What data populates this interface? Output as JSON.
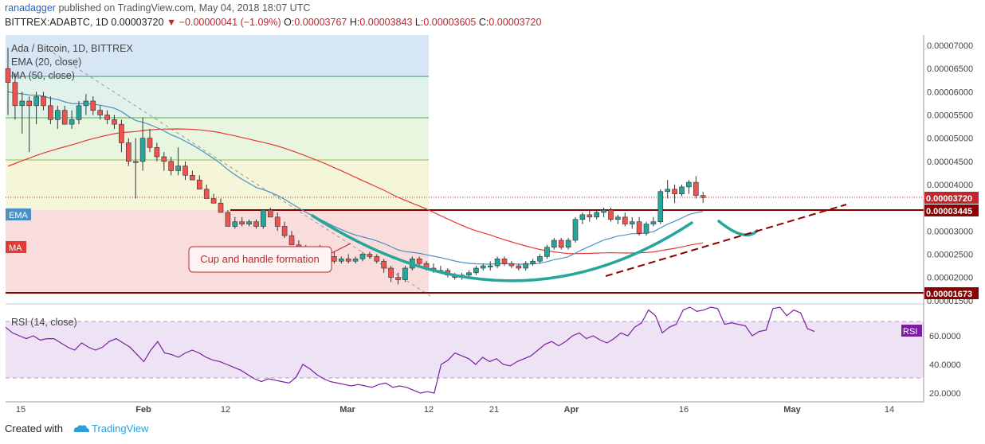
{
  "header": {
    "author": "ranadagger",
    "published": "published on TradingView.com, May 04, 2018 18:07 UTC",
    "symbol": "BITTREX:ADABTC, 1D",
    "last": "0.00003720",
    "change": "▼ −0.00000041 (−1.09%)",
    "o_label": "O:",
    "o": "0.00003767",
    "h_label": "H:",
    "h": "0.00003843",
    "l_label": "L:",
    "l": "0.00003605",
    "c_label": "C:",
    "c": "0.00003720"
  },
  "legend": {
    "title": "Ada / Bitcoin, 1D, BITTREX",
    "ema": "EMA (20, close)",
    "ma": "MA (50, close)",
    "rsi": "RSI (14, close)"
  },
  "tags": {
    "ema": "EMA",
    "ma": "MA",
    "rsi": "RSI"
  },
  "annotation": "Cup and handle formation",
  "footer": {
    "created": "Created with",
    "brand": "TradingView"
  },
  "colors": {
    "up": "#26a69a",
    "down": "#ef5350",
    "ema": "#4a90c4",
    "ma": "#e53935",
    "rsi": "#7b1fa2",
    "level": "#8b0000",
    "cup": "#26a69a"
  },
  "chart_data": [
    {
      "type": "candlestick",
      "title": "Ada / Bitcoin, 1D, BITTREX",
      "x_range": [
        "2018-01-14",
        "2018-05-19"
      ],
      "ylim": [
        1.47e-05,
        7.07e-05
      ],
      "x_tick_labels": [
        "15",
        "Feb",
        "12",
        "Mar",
        "12",
        "21",
        "Apr",
        "16",
        "May",
        "14"
      ],
      "y_tick_labels": [
        "0.00001500",
        "0.00002000",
        "0.00002500",
        "0.00003000",
        "0.00003500",
        "0.00004000",
        "0.00004500",
        "0.00005000",
        "0.00005500",
        "0.00006000",
        "0.00006500",
        "0.00007000"
      ],
      "price_labels": [
        "0.00003720",
        "0.00003445",
        "0.00001673"
      ],
      "horizontal_levels": [
        3.445e-05,
        1.673e-05
      ],
      "candles_ohlc_x1e8": [
        [
          6500,
          6950,
          5500,
          6200
        ],
        [
          6200,
          6400,
          5400,
          5700
        ],
        [
          5700,
          6000,
          5100,
          5800
        ],
        [
          5800,
          5900,
          4700,
          5700
        ],
        [
          5700,
          6000,
          5300,
          5900
        ],
        [
          5900,
          6000,
          5600,
          5700
        ],
        [
          5700,
          5900,
          5300,
          5400
        ],
        [
          5400,
          5700,
          5200,
          5600
        ],
        [
          5600,
          5700,
          5300,
          5300
        ],
        [
          5300,
          5600,
          5200,
          5400
        ],
        [
          5400,
          5800,
          5300,
          5700
        ],
        [
          5700,
          5950,
          5500,
          5800
        ],
        [
          5800,
          5900,
          5500,
          5600
        ],
        [
          5600,
          5700,
          5400,
          5500
        ],
        [
          5500,
          5600,
          5300,
          5400
        ],
        [
          5400,
          5500,
          5200,
          5300
        ],
        [
          5300,
          5400,
          4700,
          4900
        ],
        [
          4900,
          5000,
          4400,
          4500
        ],
        [
          4500,
          5000,
          3700,
          4500
        ],
        [
          4500,
          5450,
          4300,
          5000
        ],
        [
          5000,
          5200,
          4700,
          4800
        ],
        [
          4800,
          4900,
          4500,
          4600
        ],
        [
          4600,
          4700,
          4300,
          4500
        ],
        [
          4500,
          4600,
          4200,
          4300
        ],
        [
          4300,
          4800,
          4200,
          4400
        ],
        [
          4400,
          4500,
          4100,
          4200
        ],
        [
          4200,
          4300,
          4100,
          4100
        ],
        [
          4100,
          4200,
          3900,
          3900
        ],
        [
          3900,
          4000,
          3700,
          3700
        ],
        [
          3700,
          3800,
          3600,
          3600
        ],
        [
          3600,
          3700,
          3400,
          3400
        ],
        [
          3400,
          3450,
          3100,
          3100
        ],
        [
          3100,
          3300,
          3050,
          3200
        ],
        [
          3200,
          3300,
          3100,
          3150
        ],
        [
          3150,
          3250,
          3100,
          3200
        ],
        [
          3200,
          3250,
          3050,
          3100
        ],
        [
          3100,
          3450,
          3050,
          3450
        ],
        [
          3450,
          3500,
          3300,
          3300
        ],
        [
          3300,
          3400,
          3000,
          3100
        ],
        [
          3100,
          3200,
          2850,
          2900
        ],
        [
          2900,
          3000,
          2700,
          2700
        ],
        [
          2700,
          2800,
          2550,
          2600
        ],
        [
          2600,
          2700,
          2500,
          2550
        ],
        [
          2550,
          2650,
          2500,
          2600
        ],
        [
          2600,
          2700,
          2500,
          2550
        ],
        [
          2550,
          2600,
          2400,
          2450
        ],
        [
          2450,
          2550,
          2300,
          2350
        ],
        [
          2350,
          2450,
          2300,
          2400
        ],
        [
          2400,
          2500,
          2300,
          2350
        ],
        [
          2350,
          2450,
          2300,
          2400
        ],
        [
          2400,
          2550,
          2350,
          2500
        ],
        [
          2500,
          2550,
          2400,
          2450
        ],
        [
          2450,
          2500,
          2300,
          2350
        ],
        [
          2350,
          2400,
          2100,
          2200
        ],
        [
          2200,
          2250,
          1900,
          2000
        ],
        [
          2000,
          2100,
          1850,
          1950
        ],
        [
          1950,
          2250,
          1900,
          2200
        ],
        [
          2200,
          2450,
          2150,
          2400
        ],
        [
          2400,
          2450,
          2250,
          2300
        ],
        [
          2300,
          2350,
          2150,
          2200
        ],
        [
          2200,
          2300,
          2100,
          2150
        ],
        [
          2150,
          2250,
          2100,
          2150
        ],
        [
          2150,
          2200,
          2000,
          2050
        ],
        [
          2050,
          2100,
          1950,
          2000
        ],
        [
          2000,
          2100,
          1950,
          2050
        ],
        [
          2050,
          2150,
          2000,
          2100
        ],
        [
          2100,
          2250,
          2050,
          2200
        ],
        [
          2200,
          2300,
          2150,
          2250
        ],
        [
          2250,
          2350,
          2150,
          2250
        ],
        [
          2250,
          2450,
          2200,
          2400
        ],
        [
          2400,
          2450,
          2250,
          2300
        ],
        [
          2300,
          2350,
          2200,
          2250
        ],
        [
          2250,
          2300,
          2150,
          2200
        ],
        [
          2200,
          2350,
          2150,
          2300
        ],
        [
          2300,
          2400,
          2250,
          2350
        ],
        [
          2350,
          2500,
          2300,
          2450
        ],
        [
          2450,
          2700,
          2400,
          2650
        ],
        [
          2650,
          2850,
          2600,
          2800
        ],
        [
          2800,
          2850,
          2600,
          2650
        ],
        [
          2650,
          2850,
          2600,
          2800
        ],
        [
          2800,
          3300,
          2750,
          3250
        ],
        [
          3250,
          3400,
          3150,
          3350
        ],
        [
          3350,
          3450,
          3200,
          3300
        ],
        [
          3300,
          3450,
          3250,
          3400
        ],
        [
          3400,
          3500,
          3300,
          3450
        ],
        [
          3450,
          3500,
          3200,
          3250
        ],
        [
          3250,
          3350,
          3150,
          3300
        ],
        [
          3300,
          3400,
          3100,
          3150
        ],
        [
          3150,
          3300,
          3050,
          3200
        ],
        [
          3200,
          3300,
          2900,
          2950
        ],
        [
          2950,
          3200,
          2900,
          3150
        ],
        [
          3150,
          3300,
          3100,
          3200
        ],
        [
          3200,
          3900,
          3150,
          3850
        ],
        [
          3850,
          4100,
          3700,
          3900
        ],
        [
          3900,
          4000,
          3600,
          3800
        ],
        [
          3800,
          4000,
          3750,
          3950
        ],
        [
          3950,
          4100,
          3800,
          4050
        ],
        [
          4050,
          4180,
          3700,
          3767
        ],
        [
          3767,
          3843,
          3605,
          3720
        ]
      ]
    },
    {
      "type": "line",
      "title": "RSI (14, close)",
      "y_tick_labels": [
        "20.0000",
        "40.0000",
        "60.0000"
      ],
      "ylim": [
        15,
        82
      ],
      "band": [
        30,
        70
      ],
      "values": [
        66,
        62,
        60,
        58,
        60,
        57,
        58,
        58,
        55,
        52,
        50,
        55,
        52,
        50,
        52,
        56,
        58,
        55,
        52,
        47,
        42,
        50,
        56,
        48,
        47,
        45,
        48,
        50,
        48,
        45,
        43,
        42,
        40,
        38,
        36,
        33,
        30,
        28,
        30,
        29,
        28,
        27,
        31,
        40,
        37,
        33,
        30,
        28,
        27,
        26,
        25,
        26,
        25,
        24,
        26,
        27,
        24,
        25,
        24,
        22,
        20,
        21,
        20,
        40,
        43,
        48,
        46,
        44,
        40,
        45,
        42,
        44,
        40,
        39,
        42,
        44,
        46,
        50,
        54,
        56,
        53,
        56,
        60,
        62,
        58,
        60,
        57,
        55,
        58,
        62,
        60,
        66,
        69,
        78,
        74,
        62,
        66,
        68,
        78,
        80,
        77,
        78,
        80,
        79,
        68,
        69,
        68,
        67,
        60,
        63,
        64,
        79,
        80,
        74,
        78,
        76,
        65,
        63
      ]
    }
  ]
}
